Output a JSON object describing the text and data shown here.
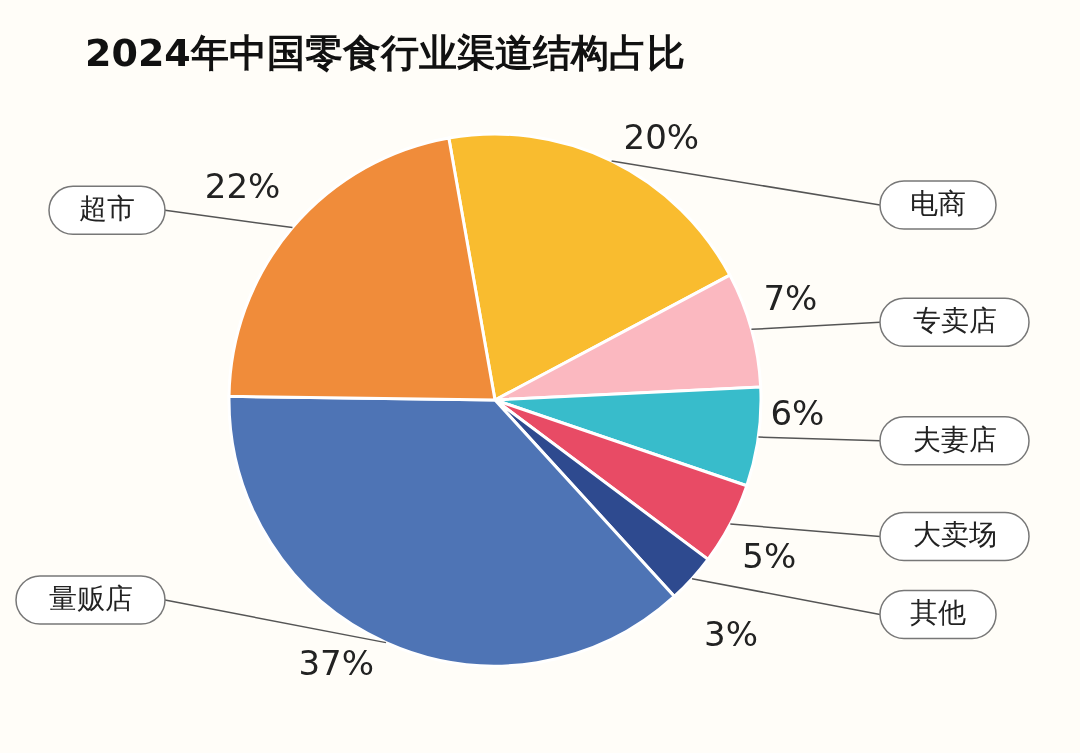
{
  "chart_data": {
    "type": "pie",
    "title": "2024年中国零食行业渠道结构占比",
    "categories": [
      "电商",
      "专卖店",
      "夫妻店",
      "大卖场",
      "其他",
      "量贩店",
      "超市"
    ],
    "values": [
      20,
      7,
      6,
      5,
      3,
      37,
      22
    ],
    "value_labels": [
      "20%",
      "7%",
      "6%",
      "5%",
      "3%",
      "37%",
      "22%"
    ],
    "colors": [
      "#f9bc2f",
      "#fbb8c0",
      "#38bccb",
      "#e84b65",
      "#2e4a8f",
      "#4e74b5",
      "#f08c3a"
    ]
  }
}
